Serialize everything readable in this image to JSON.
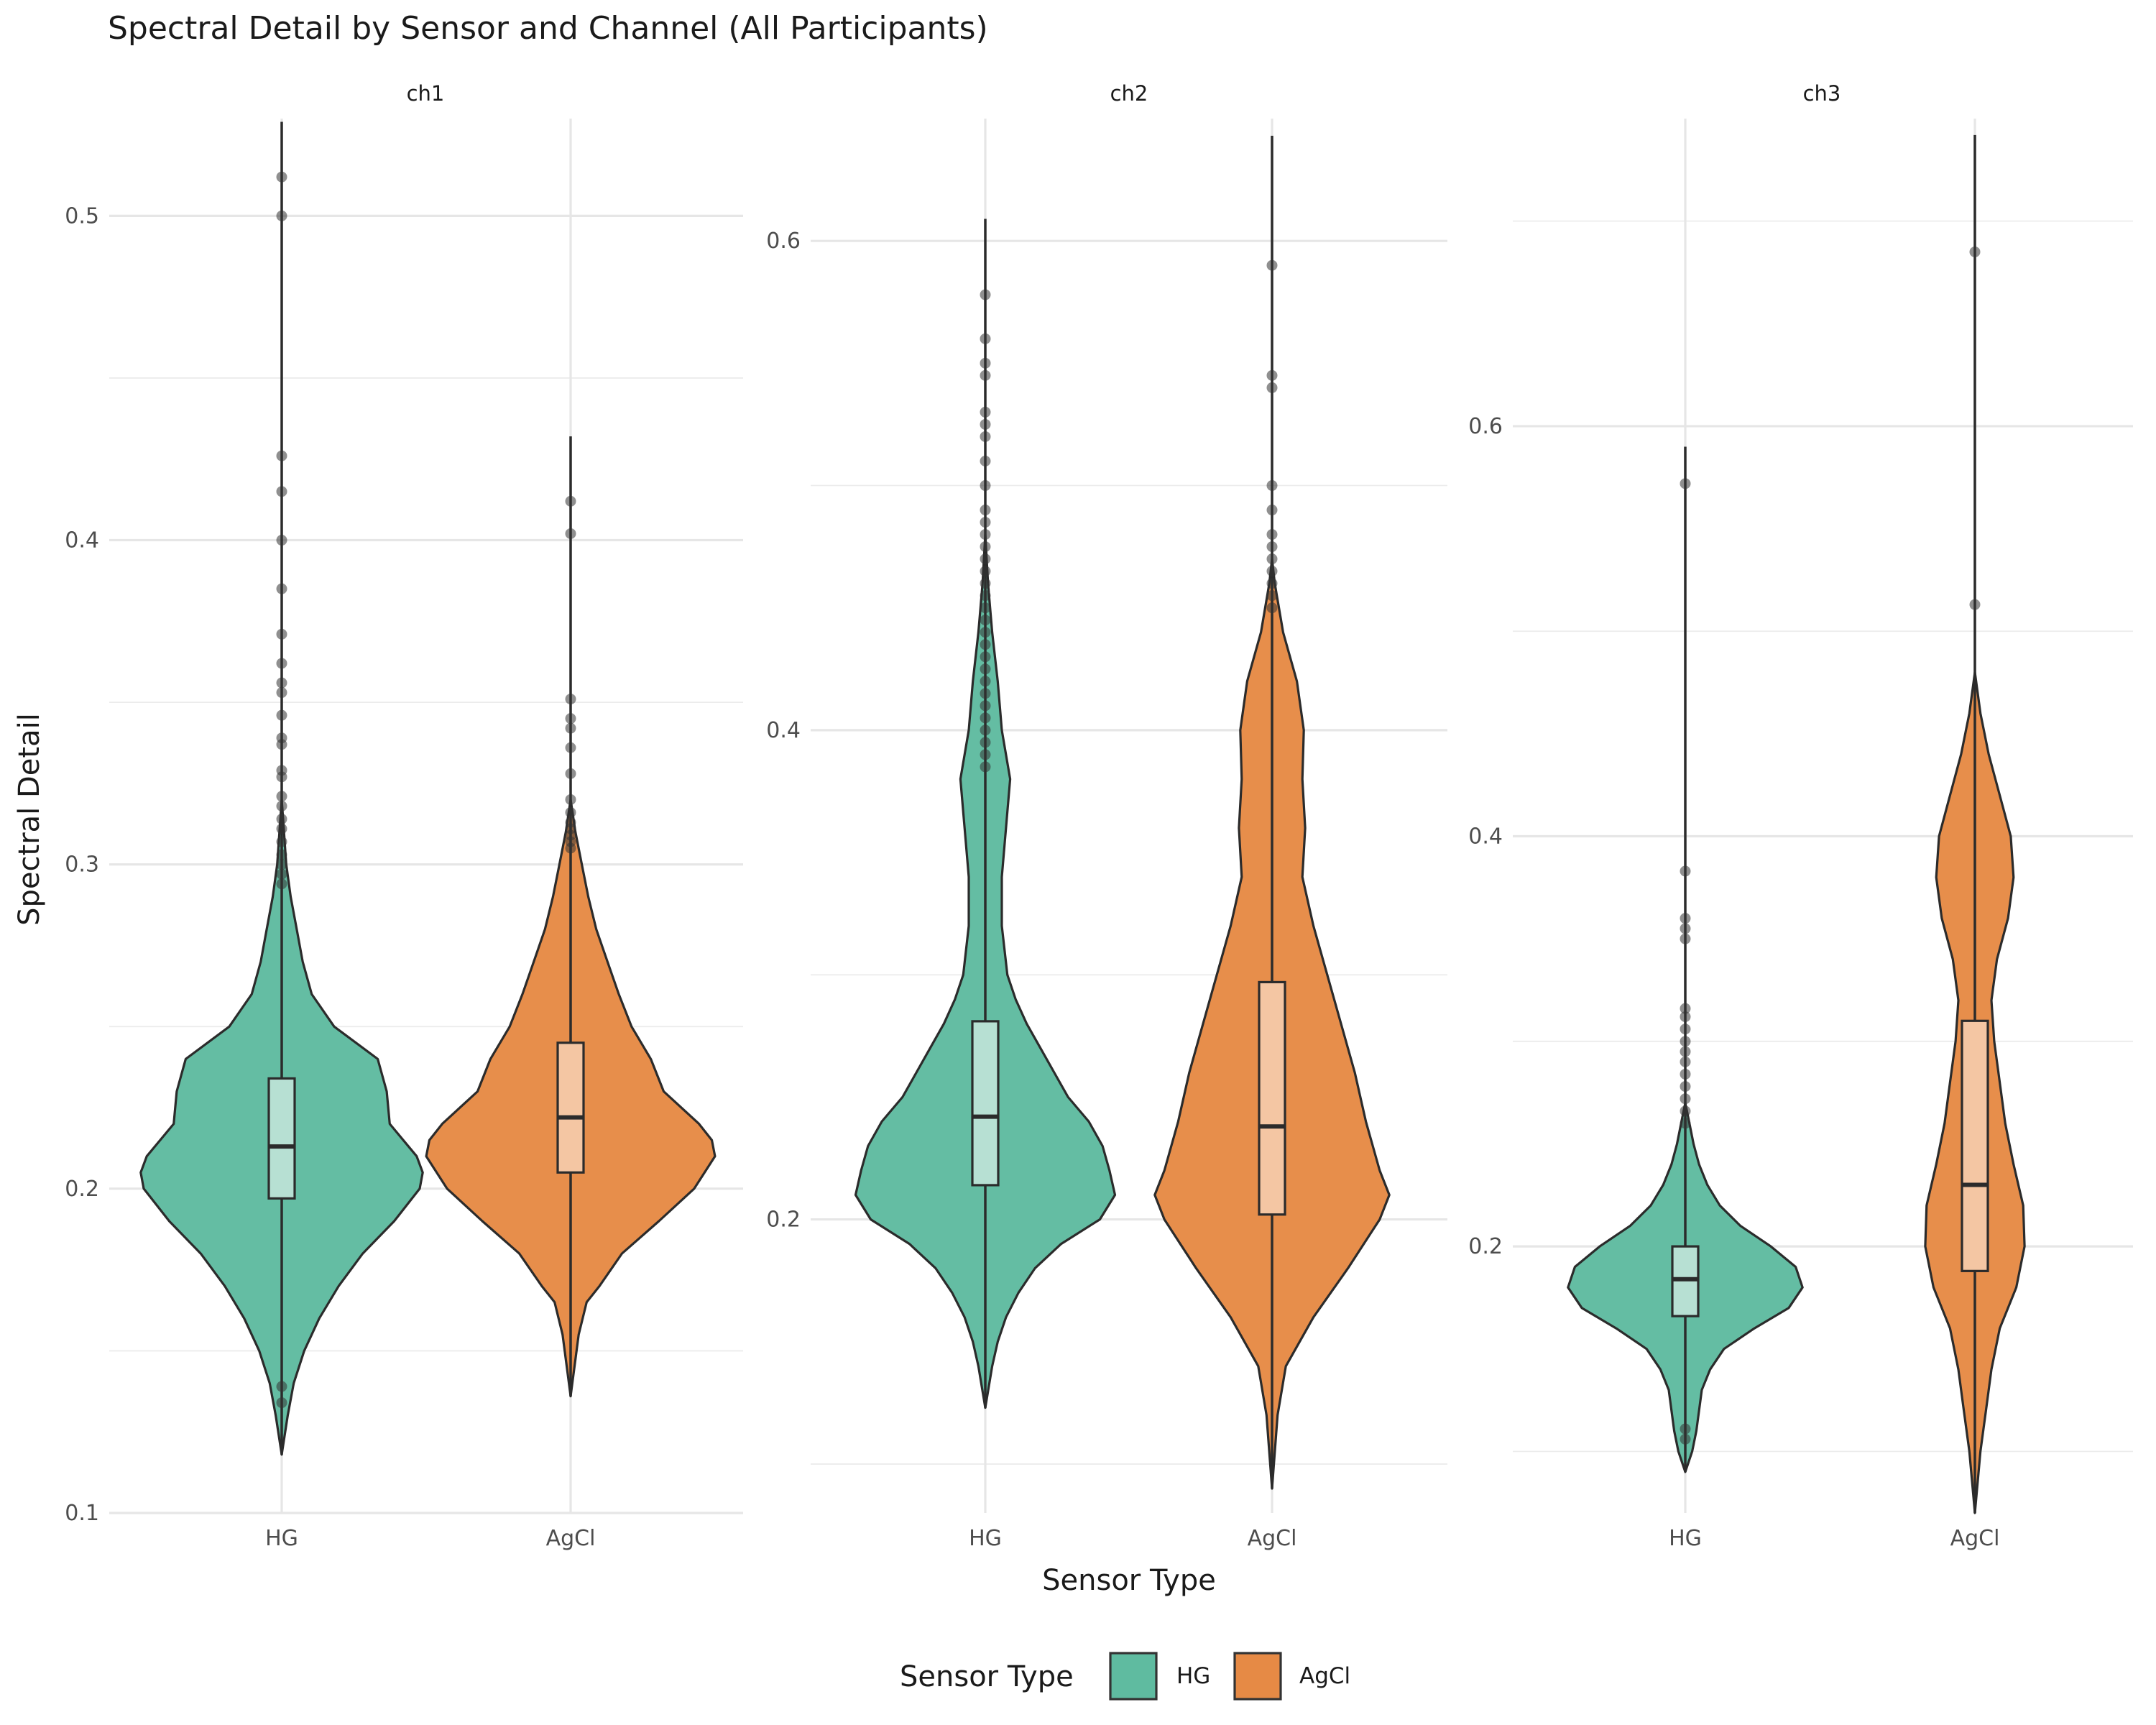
{
  "chart_data": {
    "type": "violin",
    "title": "Spectral Detail by Sensor and Channel (All Participants)",
    "xlabel": "Sensor Type",
    "ylabel": "Spectral Detail",
    "categories": [
      "HG",
      "AgCl"
    ],
    "colors": {
      "HG": "#5fbba0",
      "AgCl": "#e68a45"
    },
    "box_colors": {
      "HG": "#b7e0d3",
      "AgCl": "#f4c6a3"
    },
    "legend": {
      "title": "Sensor Type",
      "position": "bottom",
      "entries": [
        "HG",
        "AgCl"
      ]
    },
    "grid": true,
    "panels": [
      {
        "name": "ch1",
        "ylim": [
          0.1,
          0.53
        ],
        "yticks": [
          0.1,
          0.2,
          0.3,
          0.4,
          0.5
        ],
        "yticklabels": [
          "0.1",
          "0.2",
          "0.3",
          "0.4",
          "0.5"
        ],
        "minor_ticks": [
          0.15,
          0.25,
          0.35,
          0.45
        ],
        "series": [
          {
            "name": "HG",
            "box": {
              "q1": 0.197,
              "median": 0.213,
              "q3": 0.234,
              "whisker_low": 0.118,
              "whisker_high": 0.529
            },
            "violin_max_halfwidth": 0.046,
            "density": [
              [
                0.118,
                0.0
              ],
              [
                0.13,
                0.004
              ],
              [
                0.14,
                0.008
              ],
              [
                0.15,
                0.015
              ],
              [
                0.16,
                0.025
              ],
              [
                0.17,
                0.038
              ],
              [
                0.18,
                0.054
              ],
              [
                0.19,
                0.075
              ],
              [
                0.2,
                0.092
              ],
              [
                0.205,
                0.094
              ],
              [
                0.21,
                0.09
              ],
              [
                0.22,
                0.072
              ],
              [
                0.23,
                0.07
              ],
              [
                0.24,
                0.064
              ],
              [
                0.25,
                0.035
              ],
              [
                0.26,
                0.02
              ],
              [
                0.27,
                0.014
              ],
              [
                0.28,
                0.01
              ],
              [
                0.29,
                0.006
              ],
              [
                0.3,
                0.003
              ],
              [
                0.32,
                0.0
              ]
            ],
            "outliers": [
              0.512,
              0.5,
              0.426,
              0.415,
              0.4,
              0.385,
              0.371,
              0.362,
              0.356,
              0.353,
              0.346,
              0.339,
              0.337,
              0.329,
              0.327,
              0.321,
              0.318,
              0.314,
              0.311,
              0.307,
              0.303,
              0.3,
              0.297,
              0.294,
              0.139,
              0.134
            ]
          },
          {
            "name": "AgCl",
            "box": {
              "q1": 0.205,
              "median": 0.222,
              "q3": 0.245,
              "whisker_low": 0.136,
              "whisker_high": 0.432
            },
            "violin_max_halfwidth": 0.043,
            "density": [
              [
                0.136,
                0.0
              ],
              [
                0.155,
                0.005
              ],
              [
                0.165,
                0.01
              ],
              [
                0.17,
                0.018
              ],
              [
                0.18,
                0.032
              ],
              [
                0.19,
                0.055
              ],
              [
                0.2,
                0.077
              ],
              [
                0.21,
                0.09
              ],
              [
                0.215,
                0.088
              ],
              [
                0.22,
                0.08
              ],
              [
                0.23,
                0.058
              ],
              [
                0.24,
                0.05
              ],
              [
                0.25,
                0.038
              ],
              [
                0.26,
                0.03
              ],
              [
                0.27,
                0.023
              ],
              [
                0.28,
                0.016
              ],
              [
                0.29,
                0.011
              ],
              [
                0.3,
                0.007
              ],
              [
                0.31,
                0.003
              ],
              [
                0.32,
                0.0
              ]
            ],
            "outliers": [
              0.412,
              0.402,
              0.351,
              0.345,
              0.342,
              0.336,
              0.328,
              0.32,
              0.316,
              0.313,
              0.311,
              0.309,
              0.307,
              0.305
            ]
          }
        ]
      },
      {
        "name": "ch2",
        "ylim": [
          0.08,
          0.65
        ],
        "yticks": [
          0.2,
          0.4,
          0.6
        ],
        "yticklabels": [
          "0.2",
          "0.4",
          "0.6"
        ],
        "minor_ticks": [
          0.1,
          0.3,
          0.5
        ],
        "series": [
          {
            "name": "HG",
            "box": {
              "q1": 0.214,
              "median": 0.242,
              "q3": 0.281,
              "whisker_low": 0.123,
              "whisker_high": 0.609
            },
            "violin_max_halfwidth": 0.05,
            "density": [
              [
                0.123,
                0.0
              ],
              [
                0.14,
                0.005
              ],
              [
                0.15,
                0.009
              ],
              [
                0.16,
                0.015
              ],
              [
                0.17,
                0.024
              ],
              [
                0.18,
                0.036
              ],
              [
                0.19,
                0.055
              ],
              [
                0.2,
                0.083
              ],
              [
                0.21,
                0.094
              ],
              [
                0.22,
                0.09
              ],
              [
                0.23,
                0.085
              ],
              [
                0.24,
                0.075
              ],
              [
                0.25,
                0.06
              ],
              [
                0.26,
                0.05
              ],
              [
                0.27,
                0.04
              ],
              [
                0.28,
                0.03
              ],
              [
                0.29,
                0.022
              ],
              [
                0.3,
                0.016
              ],
              [
                0.32,
                0.012
              ],
              [
                0.34,
                0.012
              ],
              [
                0.36,
                0.015
              ],
              [
                0.38,
                0.018
              ],
              [
                0.4,
                0.012
              ],
              [
                0.42,
                0.009
              ],
              [
                0.44,
                0.005
              ],
              [
                0.46,
                0.002
              ],
              [
                0.48,
                0.0
              ]
            ],
            "outliers": [
              0.578,
              0.56,
              0.55,
              0.545,
              0.53,
              0.525,
              0.52,
              0.51,
              0.5,
              0.49,
              0.485,
              0.48,
              0.475,
              0.47,
              0.465,
              0.46,
              0.455,
              0.45,
              0.445,
              0.44,
              0.435,
              0.43,
              0.425,
              0.42,
              0.415,
              0.41,
              0.405,
              0.4,
              0.395,
              0.39,
              0.385
            ]
          },
          {
            "name": "AgCl",
            "box": {
              "q1": 0.202,
              "median": 0.238,
              "q3": 0.297,
              "whisker_low": 0.09,
              "whisker_high": 0.643
            },
            "violin_max_halfwidth": 0.05,
            "density": [
              [
                0.09,
                0.0
              ],
              [
                0.12,
                0.004
              ],
              [
                0.14,
                0.01
              ],
              [
                0.16,
                0.03
              ],
              [
                0.18,
                0.055
              ],
              [
                0.2,
                0.078
              ],
              [
                0.21,
                0.085
              ],
              [
                0.22,
                0.078
              ],
              [
                0.24,
                0.068
              ],
              [
                0.26,
                0.06
              ],
              [
                0.28,
                0.05
              ],
              [
                0.3,
                0.04
              ],
              [
                0.32,
                0.03
              ],
              [
                0.34,
                0.022
              ],
              [
                0.36,
                0.024
              ],
              [
                0.38,
                0.022
              ],
              [
                0.4,
                0.023
              ],
              [
                0.42,
                0.018
              ],
              [
                0.44,
                0.008
              ],
              [
                0.46,
                0.002
              ],
              [
                0.47,
                0.0
              ]
            ],
            "outliers": [
              0.59,
              0.545,
              0.54,
              0.5,
              0.49,
              0.48,
              0.475,
              0.47,
              0.465,
              0.46,
              0.455,
              0.45
            ]
          }
        ]
      },
      {
        "name": "ch3",
        "ylim": [
          0.07,
          0.75
        ],
        "yticks": [
          0.2,
          0.4,
          0.6
        ],
        "yticklabels": [
          "0.2",
          "0.4",
          "0.6"
        ],
        "minor_ticks": [
          0.1,
          0.3,
          0.5,
          0.7
        ],
        "series": [
          {
            "name": "HG",
            "box": {
              "q1": 0.166,
              "median": 0.184,
              "q3": 0.2,
              "whisker_low": 0.09,
              "whisker_high": 0.59
            },
            "violin_max_halfwidth": 0.05,
            "density": [
              [
                0.09,
                0.0
              ],
              [
                0.1,
                0.005
              ],
              [
                0.11,
                0.008
              ],
              [
                0.12,
                0.01
              ],
              [
                0.13,
                0.012
              ],
              [
                0.14,
                0.018
              ],
              [
                0.15,
                0.028
              ],
              [
                0.16,
                0.05
              ],
              [
                0.17,
                0.075
              ],
              [
                0.18,
                0.085
              ],
              [
                0.19,
                0.08
              ],
              [
                0.2,
                0.062
              ],
              [
                0.21,
                0.04
              ],
              [
                0.22,
                0.025
              ],
              [
                0.23,
                0.016
              ],
              [
                0.24,
                0.01
              ],
              [
                0.25,
                0.006
              ],
              [
                0.26,
                0.003
              ],
              [
                0.27,
                0.0
              ]
            ],
            "outliers": [
              0.572,
              0.383,
              0.36,
              0.355,
              0.35,
              0.316,
              0.312,
              0.306,
              0.3,
              0.295,
              0.29,
              0.284,
              0.278,
              0.272,
              0.266,
              0.26,
              0.111,
              0.106
            ]
          },
          {
            "name": "AgCl",
            "box": {
              "q1": 0.188,
              "median": 0.23,
              "q3": 0.31,
              "whisker_low": 0.07,
              "whisker_high": 0.742
            },
            "violin_max_halfwidth": 0.05,
            "density": [
              [
                0.07,
                0.0
              ],
              [
                0.1,
                0.004
              ],
              [
                0.12,
                0.008
              ],
              [
                0.14,
                0.012
              ],
              [
                0.16,
                0.018
              ],
              [
                0.18,
                0.03
              ],
              [
                0.2,
                0.036
              ],
              [
                0.22,
                0.035
              ],
              [
                0.24,
                0.028
              ],
              [
                0.26,
                0.022
              ],
              [
                0.28,
                0.018
              ],
              [
                0.3,
                0.014
              ],
              [
                0.32,
                0.012
              ],
              [
                0.34,
                0.016
              ],
              [
                0.36,
                0.024
              ],
              [
                0.38,
                0.028
              ],
              [
                0.4,
                0.026
              ],
              [
                0.42,
                0.018
              ],
              [
                0.44,
                0.01
              ],
              [
                0.46,
                0.004
              ],
              [
                0.48,
                0.0
              ]
            ],
            "outliers": [
              0.685,
              0.513
            ]
          }
        ]
      }
    ]
  }
}
